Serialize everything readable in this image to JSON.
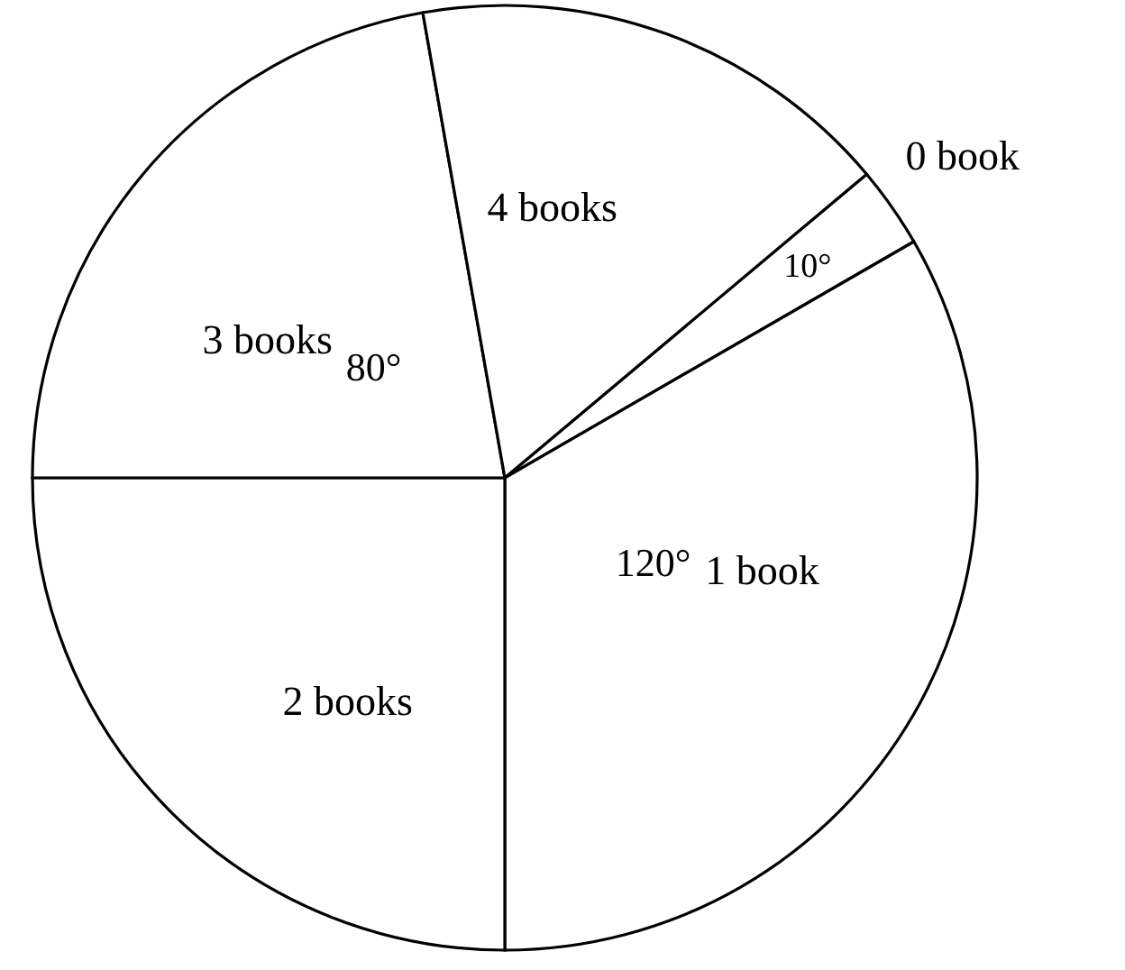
{
  "chart_data": {
    "type": "pie",
    "categories": [
      "0 book",
      "1 book",
      "2 books",
      "3 books",
      "4 books"
    ],
    "values": [
      10,
      120,
      90,
      80,
      60
    ],
    "value_labels": [
      "10°",
      "120°",
      null,
      "80°",
      null
    ],
    "colors": [
      "#ffffff",
      "#ffffff",
      "#ffffff",
      "#ffffff",
      "#ffffff"
    ]
  }
}
